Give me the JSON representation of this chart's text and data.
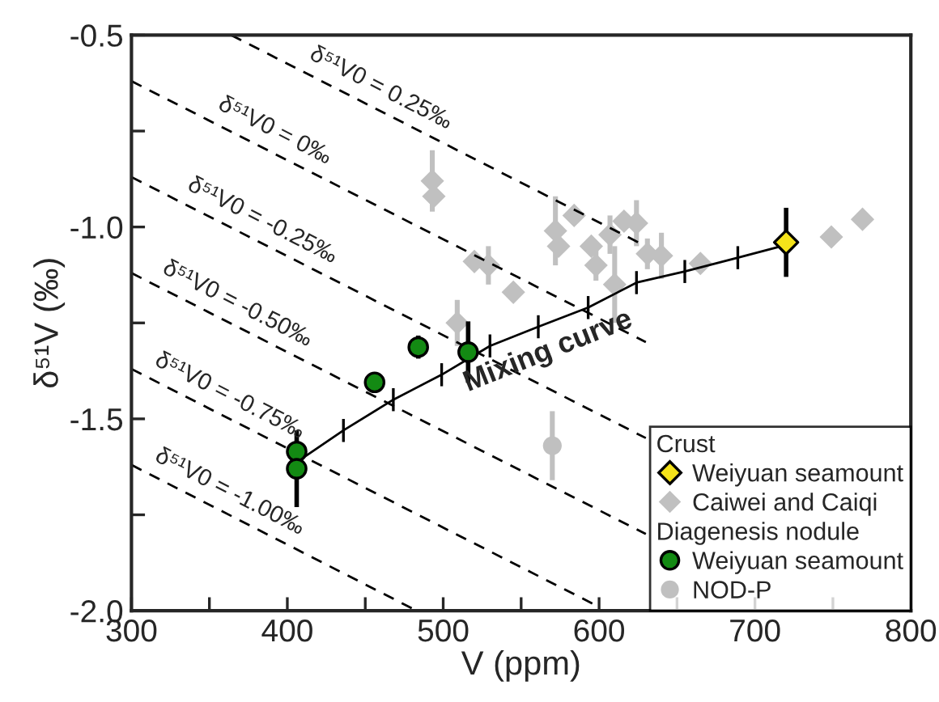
{
  "chart_data": {
    "type": "scatter",
    "xlabel": "V (ppm)",
    "ylabel": "δ⁵¹V (‰)",
    "xlim": [
      300,
      800
    ],
    "ylim": [
      -2.0,
      -0.5
    ],
    "xticks": [
      300,
      {
        "value": 350,
        "label": null
      },
      400,
      {
        "value": 450,
        "label": null
      },
      500,
      {
        "value": 550,
        "label": null
      },
      600,
      {
        "value": 650,
        "label": null
      },
      700,
      {
        "value": 750,
        "label": null
      },
      800
    ],
    "yticks": [
      {
        "value": -2.0,
        "label": "-2.0"
      },
      {
        "value": -1.75,
        "label": null
      },
      {
        "value": -1.5,
        "label": "-1.5"
      },
      {
        "value": -1.25,
        "label": null
      },
      {
        "value": -1.0,
        "label": "-1.0"
      },
      {
        "value": -0.75,
        "label": null
      },
      {
        "value": -0.5,
        "label": "-0.5"
      }
    ],
    "grid": false,
    "legend": "bottom right",
    "series": [
      {
        "type": "line",
        "line_style": "dashed",
        "marker": "none",
        "color": "#000000",
        "x": [
          364,
          630
        ],
        "values": [
          -0.5,
          -1.05
        ]
      },
      {
        "type": "line",
        "line_style": "dashed",
        "marker": "none",
        "color": "#000000",
        "x": [
          300,
          630
        ],
        "values": [
          -0.62,
          -1.3
        ]
      },
      {
        "type": "line",
        "line_style": "dashed",
        "marker": "none",
        "color": "#000000",
        "x": [
          300,
          630
        ],
        "values": [
          -0.87,
          -1.55
        ]
      },
      {
        "type": "line",
        "line_style": "dashed",
        "marker": "none",
        "color": "#000000",
        "x": [
          300,
          630
        ],
        "values": [
          -1.12,
          -1.8
        ]
      },
      {
        "type": "line",
        "line_style": "dashed",
        "marker": "none",
        "color": "#000000",
        "x": [
          300,
          600
        ],
        "values": [
          -1.37,
          -1.99
        ]
      },
      {
        "type": "line",
        "line_style": "dashed",
        "marker": "none",
        "color": "#000000",
        "x": [
          300,
          483
        ],
        "values": [
          -1.62,
          -2.0
        ]
      },
      {
        "type": "line",
        "line_style": "solid",
        "marker": "none",
        "color": "#000000",
        "x": [
          407,
          436,
          468,
          499,
          530,
          561,
          593,
          624,
          655,
          689,
          719
        ],
        "values": [
          -1.61,
          -1.53,
          -1.45,
          -1.385,
          -1.31,
          -1.26,
          -1.21,
          -1.145,
          -1.116,
          -1.08,
          -1.048
        ],
        "errors": [
          null,
          0.03,
          0.03,
          0.03,
          0.03,
          0.03,
          0.03,
          0.03,
          0.03,
          0.03,
          null
        ]
      },
      {
        "name": "Weiyuan seamount",
        "marker": "diamond",
        "color": "#f5e31a",
        "x": [
          720
        ],
        "values": [
          -1.04
        ],
        "errors": [
          0.09
        ]
      },
      {
        "name": "Caiwei and Caiqi",
        "marker": "diamond",
        "color": "#c0c0c0",
        "x": [
          493,
          494,
          520,
          529,
          545,
          509,
          572,
          574,
          584,
          595,
          598,
          607,
          610,
          616,
          624,
          631,
          640,
          665,
          749,
          769
        ],
        "values": [
          -0.88,
          -0.92,
          -1.09,
          -1.1,
          -1.17,
          -1.25,
          -1.01,
          -1.05,
          -0.97,
          -1.05,
          -1.1,
          -1.02,
          -1.15,
          -0.985,
          -0.99,
          -1.07,
          -1.075,
          -1.095,
          -1.026,
          -0.98
        ],
        "errors": [
          0.08,
          null,
          null,
          0.05,
          null,
          0.06,
          0.09,
          null,
          null,
          null,
          0.04,
          0.05,
          0.1,
          null,
          0.06,
          0.04,
          0.06,
          null,
          null,
          null
        ]
      },
      {
        "name": "Weiyuan seamount",
        "marker": "circle",
        "color": "#138a13",
        "x": [
          406,
          406,
          456,
          484,
          516
        ],
        "values": [
          -1.585,
          -1.63,
          -1.405,
          -1.313,
          -1.326
        ],
        "errors": [
          null,
          0.1,
          0.02,
          0.03,
          0.08
        ]
      },
      {
        "name": "NOD-P",
        "marker": "circle",
        "color": "#c0c0c0",
        "x": [
          570
        ],
        "values": [
          -1.57
        ],
        "errors": [
          0.09
        ]
      }
    ],
    "annotations": [
      "Crust",
      "Diagenesis nodule",
      {
        "text": "δ⁵¹V0 = 0.25‰",
        "x": 454,
        "y": -0.686
      },
      {
        "text": "δ⁵¹V0 = 0‰",
        "x": 386,
        "y": -0.797
      },
      {
        "text": "δ⁵¹V0 = -0.25‰",
        "x": 378,
        "y": -1.031
      },
      {
        "text": "δ⁵¹V0 = -0.50‰",
        "x": 362,
        "y": -1.248
      },
      {
        "text": "δ⁵¹V0 = -0.75‰",
        "x": 357,
        "y": -1.488
      },
      {
        "text": "δ⁵¹V0 = -1.00‰",
        "x": 357,
        "y": -1.738
      },
      {
        "text": "Mixing curve",
        "x": 561,
        "y": -1.26
      }
    ]
  }
}
